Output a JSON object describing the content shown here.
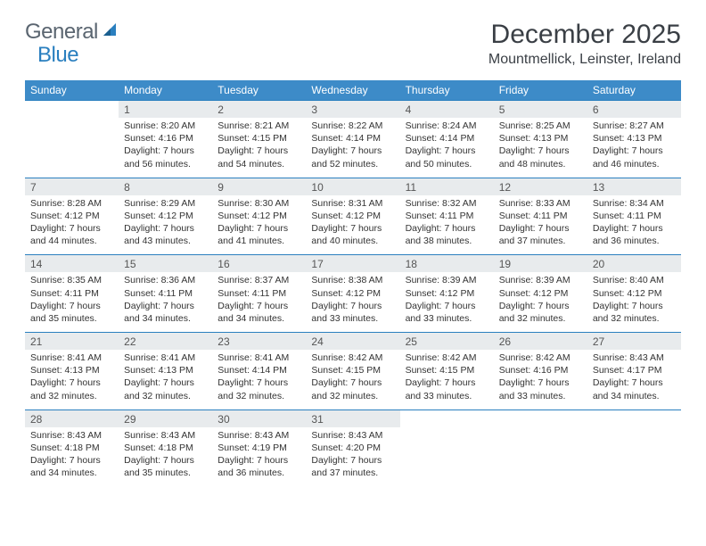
{
  "logo": {
    "part1": "General",
    "part2": "Blue",
    "icon_color": "#2a7fbf",
    "text_color": "#5a6570"
  },
  "title": "December 2025",
  "location": "Mountmellick, Leinster, Ireland",
  "colors": {
    "header_bg": "#3d8bc8",
    "header_text": "#ffffff",
    "numrow_bg": "#e8ebed",
    "border": "#2a7fbf",
    "body_text": "#333333"
  },
  "day_headers": [
    "Sunday",
    "Monday",
    "Tuesday",
    "Wednesday",
    "Thursday",
    "Friday",
    "Saturday"
  ],
  "weeks": [
    [
      null,
      {
        "n": "1",
        "sr": "8:20 AM",
        "ss": "4:16 PM",
        "dl": "7 hours and 56 minutes."
      },
      {
        "n": "2",
        "sr": "8:21 AM",
        "ss": "4:15 PM",
        "dl": "7 hours and 54 minutes."
      },
      {
        "n": "3",
        "sr": "8:22 AM",
        "ss": "4:14 PM",
        "dl": "7 hours and 52 minutes."
      },
      {
        "n": "4",
        "sr": "8:24 AM",
        "ss": "4:14 PM",
        "dl": "7 hours and 50 minutes."
      },
      {
        "n": "5",
        "sr": "8:25 AM",
        "ss": "4:13 PM",
        "dl": "7 hours and 48 minutes."
      },
      {
        "n": "6",
        "sr": "8:27 AM",
        "ss": "4:13 PM",
        "dl": "7 hours and 46 minutes."
      }
    ],
    [
      {
        "n": "7",
        "sr": "8:28 AM",
        "ss": "4:12 PM",
        "dl": "7 hours and 44 minutes."
      },
      {
        "n": "8",
        "sr": "8:29 AM",
        "ss": "4:12 PM",
        "dl": "7 hours and 43 minutes."
      },
      {
        "n": "9",
        "sr": "8:30 AM",
        "ss": "4:12 PM",
        "dl": "7 hours and 41 minutes."
      },
      {
        "n": "10",
        "sr": "8:31 AM",
        "ss": "4:12 PM",
        "dl": "7 hours and 40 minutes."
      },
      {
        "n": "11",
        "sr": "8:32 AM",
        "ss": "4:11 PM",
        "dl": "7 hours and 38 minutes."
      },
      {
        "n": "12",
        "sr": "8:33 AM",
        "ss": "4:11 PM",
        "dl": "7 hours and 37 minutes."
      },
      {
        "n": "13",
        "sr": "8:34 AM",
        "ss": "4:11 PM",
        "dl": "7 hours and 36 minutes."
      }
    ],
    [
      {
        "n": "14",
        "sr": "8:35 AM",
        "ss": "4:11 PM",
        "dl": "7 hours and 35 minutes."
      },
      {
        "n": "15",
        "sr": "8:36 AM",
        "ss": "4:11 PM",
        "dl": "7 hours and 34 minutes."
      },
      {
        "n": "16",
        "sr": "8:37 AM",
        "ss": "4:11 PM",
        "dl": "7 hours and 34 minutes."
      },
      {
        "n": "17",
        "sr": "8:38 AM",
        "ss": "4:12 PM",
        "dl": "7 hours and 33 minutes."
      },
      {
        "n": "18",
        "sr": "8:39 AM",
        "ss": "4:12 PM",
        "dl": "7 hours and 33 minutes."
      },
      {
        "n": "19",
        "sr": "8:39 AM",
        "ss": "4:12 PM",
        "dl": "7 hours and 32 minutes."
      },
      {
        "n": "20",
        "sr": "8:40 AM",
        "ss": "4:12 PM",
        "dl": "7 hours and 32 minutes."
      }
    ],
    [
      {
        "n": "21",
        "sr": "8:41 AM",
        "ss": "4:13 PM",
        "dl": "7 hours and 32 minutes."
      },
      {
        "n": "22",
        "sr": "8:41 AM",
        "ss": "4:13 PM",
        "dl": "7 hours and 32 minutes."
      },
      {
        "n": "23",
        "sr": "8:41 AM",
        "ss": "4:14 PM",
        "dl": "7 hours and 32 minutes."
      },
      {
        "n": "24",
        "sr": "8:42 AM",
        "ss": "4:15 PM",
        "dl": "7 hours and 32 minutes."
      },
      {
        "n": "25",
        "sr": "8:42 AM",
        "ss": "4:15 PM",
        "dl": "7 hours and 33 minutes."
      },
      {
        "n": "26",
        "sr": "8:42 AM",
        "ss": "4:16 PM",
        "dl": "7 hours and 33 minutes."
      },
      {
        "n": "27",
        "sr": "8:43 AM",
        "ss": "4:17 PM",
        "dl": "7 hours and 34 minutes."
      }
    ],
    [
      {
        "n": "28",
        "sr": "8:43 AM",
        "ss": "4:18 PM",
        "dl": "7 hours and 34 minutes."
      },
      {
        "n": "29",
        "sr": "8:43 AM",
        "ss": "4:18 PM",
        "dl": "7 hours and 35 minutes."
      },
      {
        "n": "30",
        "sr": "8:43 AM",
        "ss": "4:19 PM",
        "dl": "7 hours and 36 minutes."
      },
      {
        "n": "31",
        "sr": "8:43 AM",
        "ss": "4:20 PM",
        "dl": "7 hours and 37 minutes."
      },
      null,
      null,
      null
    ]
  ],
  "labels": {
    "sunrise": "Sunrise:",
    "sunset": "Sunset:",
    "daylight": "Daylight:"
  }
}
